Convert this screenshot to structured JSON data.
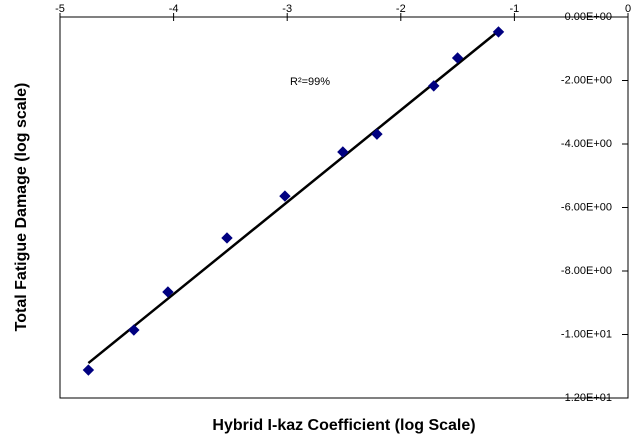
{
  "chart_data": {
    "type": "scatter",
    "x_label": "Hybrid I-kaz Coefficient (log Scale)",
    "y_label": "Total Fatigue Damage (log scale)",
    "annotation": "R²=99%",
    "series": [
      {
        "color": "#000080",
        "x": [
          -4.75,
          -4.35,
          -4.05,
          -3.53,
          -3.02,
          -2.51,
          -2.21,
          -1.71,
          -1.5,
          -1.14
        ],
        "values": [
          -11.12,
          -9.86,
          -8.66,
          -6.96,
          -5.64,
          -4.25,
          -3.69,
          -2.17,
          -1.29,
          -0.47
        ]
      }
    ],
    "trendline": {
      "color": "#000000",
      "x": [
        -4.75,
        -1.14
      ],
      "values": [
        -10.9,
        -0.44
      ]
    },
    "xlim": [
      -5,
      0
    ],
    "xticks": [
      -5,
      -4,
      -3,
      -2,
      -1,
      0
    ],
    "ylim": [
      -12,
      0
    ],
    "yticks": [
      {
        "value": 0,
        "label": "0.00E+00"
      },
      {
        "value": -2,
        "label": "-2.00E+00"
      },
      {
        "value": -4,
        "label": "-4.00E+00"
      },
      {
        "value": -6,
        "label": "-6.00E+00"
      },
      {
        "value": -8,
        "label": "-8.00E+00"
      },
      {
        "value": -10,
        "label": "-1.00E+01"
      },
      {
        "value": -12,
        "label": "-1.20E+01"
      }
    ],
    "grid": false
  }
}
